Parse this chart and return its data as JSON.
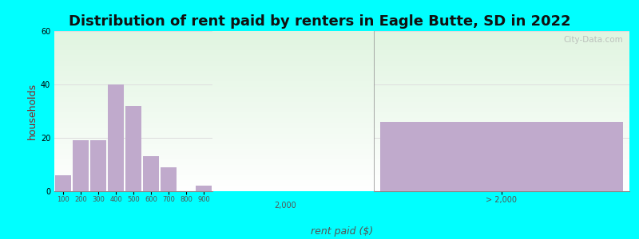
{
  "title": "Distribution of rent paid by renters in Eagle Butte, SD in 2022",
  "xlabel": "rent paid ($)",
  "ylabel": "households",
  "background_outer": "#00FFFF",
  "bar_color": "#C0AACC",
  "ylim": [
    0,
    60
  ],
  "yticks": [
    0,
    20,
    40,
    60
  ],
  "hist_bins": [
    100,
    200,
    300,
    400,
    500,
    600,
    700,
    800,
    900
  ],
  "hist_values": [
    6,
    19,
    19,
    40,
    32,
    13,
    9,
    0,
    2
  ],
  "special_bar_value": 26,
  "special_bar_label": "> 2,000",
  "xtick_middle": "2,000",
  "watermark": "City-Data.com",
  "title_fontsize": 13,
  "axis_label_fontsize": 9,
  "tick_fontsize": 7,
  "bg_top": "#dff0df",
  "bg_bottom": "#f8fff8",
  "grid_color": "#dddddd",
  "text_color": "#555555",
  "ylabel_color": "#8b2222"
}
